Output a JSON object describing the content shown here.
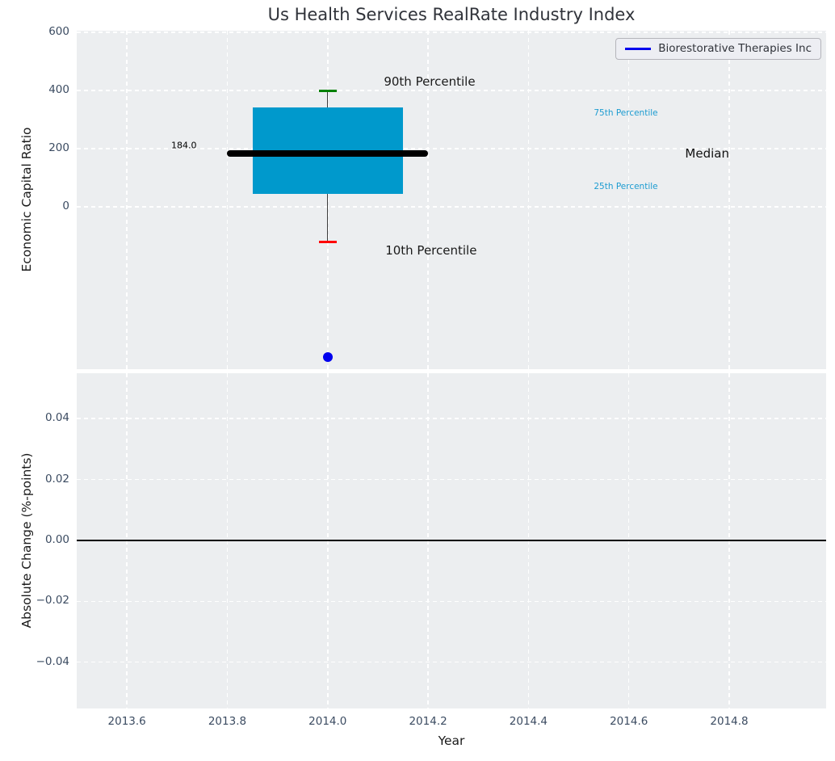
{
  "title": "Us Health Services RealRate Industry Index",
  "legend": {
    "label": "Biorestorative Therapies Inc"
  },
  "colors": {
    "figure_bg": "#ffffff",
    "axes_bg": "#eceef0",
    "grid": "#ffffff",
    "tick_label": "#3b4b61",
    "box_fill": "#0099cc",
    "median_line": "#000000",
    "whisker": "#3d3d3d",
    "p90_cap": "#008000",
    "p10_cap": "#ff0000",
    "company_point": "#0000ee",
    "zero_line": "#000000",
    "percentile_label_blue": "#1d9cd1",
    "annotation_black": "#1a1a1a"
  },
  "chart_data": [
    {
      "type": "boxplot",
      "title": "Us Health Services RealRate Industry Index",
      "ylabel": "Economic Capital Ratio",
      "yticks": [
        600,
        400,
        200,
        0
      ],
      "ytick_labels": [
        "600",
        "400",
        "200",
        "0"
      ],
      "ylim": [
        -558.3,
        605.6
      ],
      "xticks": [
        2013.6,
        2013.8,
        2014.0,
        2014.2,
        2014.4,
        2014.6,
        2014.8
      ],
      "xlim": [
        2013.5,
        2014.993
      ],
      "grid": {
        "on": true,
        "style": "white dashed"
      },
      "legend_position": "upper right",
      "box": {
        "x_center": 2014.0,
        "x_left": 2013.85,
        "x_right": 2014.15,
        "p10": -122,
        "q1": 44,
        "median": 184,
        "q3": 342,
        "p90": 400,
        "median_line_x": [
          2013.8,
          2014.2
        ],
        "median_value_label": "184.0"
      },
      "series": [
        {
          "name": "Biorestorative Therapies Inc",
          "type": "scatter",
          "color_key": "company_point",
          "points": [
            {
              "x": 2014.0,
              "y": -516
            }
          ]
        }
      ],
      "annotations": [
        {
          "key": "p90-percentile-label",
          "text": "90th Percentile",
          "x": 2014.203,
          "y": 431,
          "size": 15,
          "color": "#1a1a1a",
          "anchor": "center"
        },
        {
          "key": "p75-percentile-label",
          "text": "75th Percentile",
          "x": 2014.594,
          "y": 322,
          "size": 10.5,
          "color": "#1d9cd1",
          "anchor": "center"
        },
        {
          "key": "median-label",
          "text": "Median",
          "x": 2014.756,
          "y": 184,
          "size": 15,
          "color": "#111111",
          "anchor": "center"
        },
        {
          "key": "p25-percentile-label",
          "text": "25th Percentile",
          "x": 2014.594,
          "y": 69,
          "size": 10.5,
          "color": "#1d9cd1",
          "anchor": "center"
        },
        {
          "key": "p10-percentile-label",
          "text": "10th Percentile",
          "x": 2014.206,
          "y": -150,
          "size": 15,
          "color": "#1a1a1a",
          "anchor": "center"
        },
        {
          "key": "median-value-label",
          "text": "184.0",
          "x": 2013.739,
          "y": 211,
          "size": 11,
          "color": "#000000",
          "anchor": "right"
        }
      ]
    },
    {
      "type": "line",
      "ylabel": "Absolute Change (%-points)",
      "xlabel": "Year",
      "yticks": [
        0.04,
        0.02,
        0.0,
        -0.02,
        -0.04
      ],
      "ytick_labels": [
        "0.04",
        "0.02",
        "0.00",
        "−0.02",
        "−0.04"
      ],
      "ylim": [
        -0.0552,
        0.0549
      ],
      "xticks": [
        2013.6,
        2013.8,
        2014.0,
        2014.2,
        2014.4,
        2014.6,
        2014.8
      ],
      "xtick_labels": [
        "2013.6",
        "2013.8",
        "2014.0",
        "2014.2",
        "2014.4",
        "2014.6",
        "2014.8"
      ],
      "xlim": [
        2013.5,
        2014.993
      ],
      "grid": {
        "on": true,
        "style": "white dashed"
      },
      "zero_line_y": 0.0,
      "series": []
    }
  ]
}
